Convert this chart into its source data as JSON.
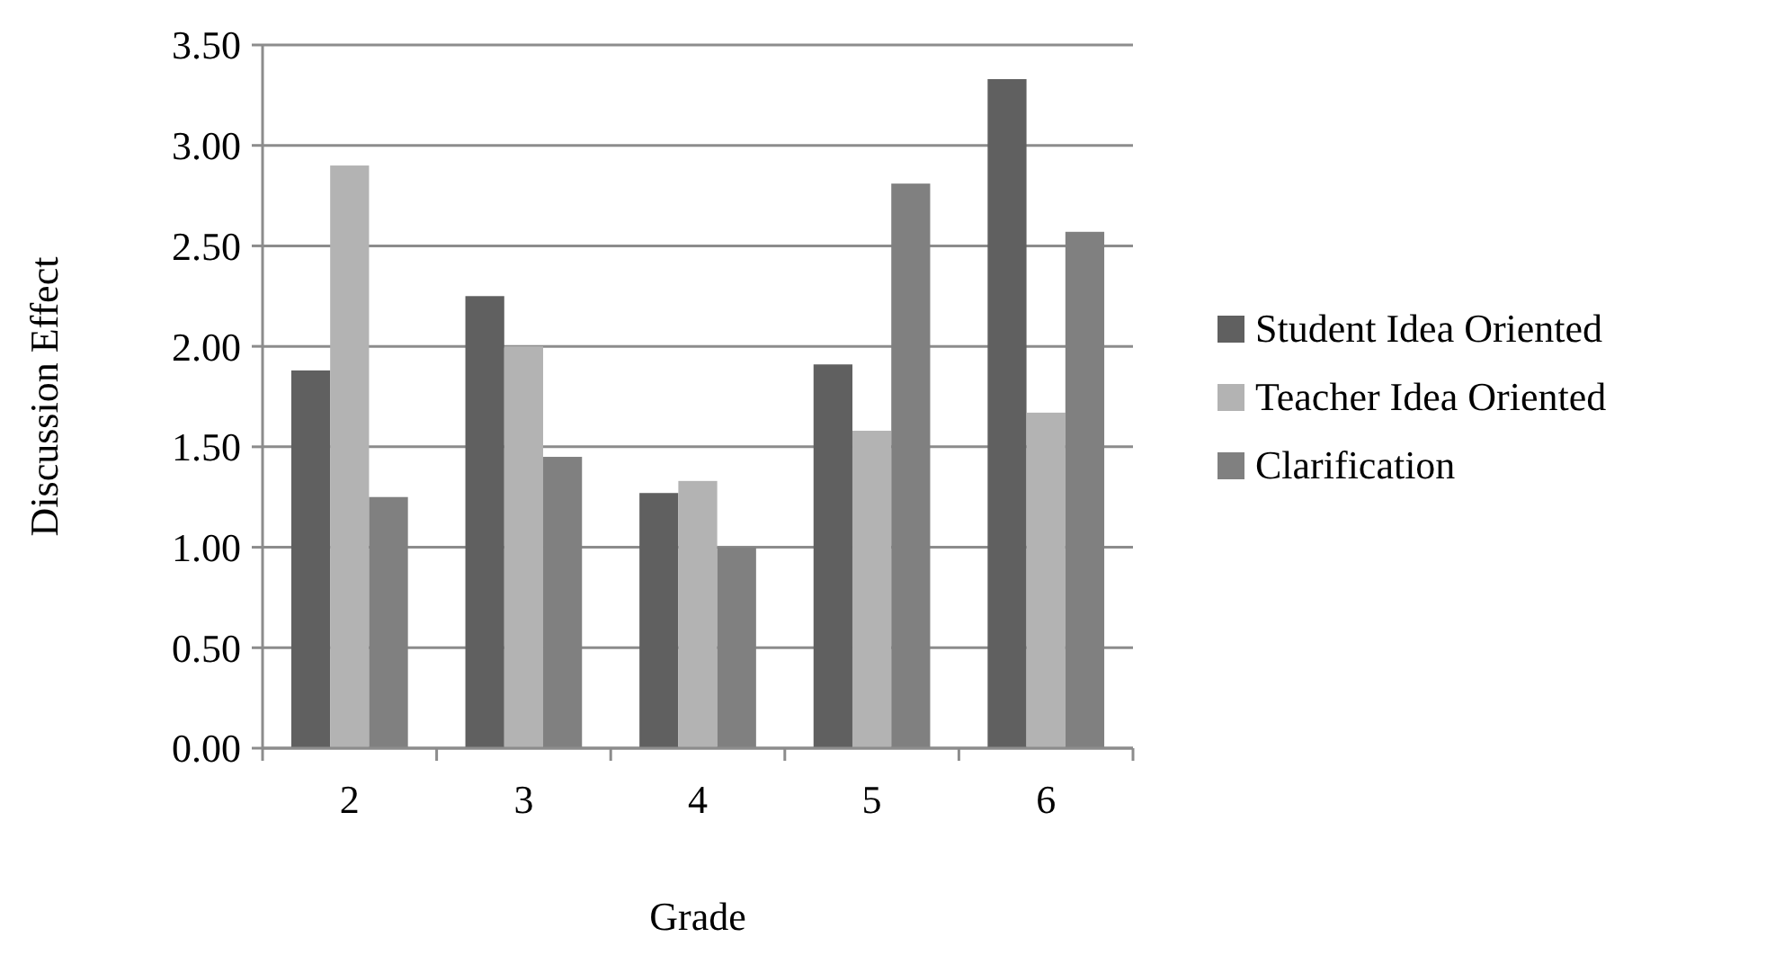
{
  "chart_data": {
    "type": "bar",
    "xlabel": "Grade",
    "ylabel": "Discussion Effect",
    "categories": [
      "2",
      "3",
      "4",
      "5",
      "6"
    ],
    "series": [
      {
        "name": "Student Idea Oriented",
        "color": "#606060",
        "values": [
          1.88,
          2.25,
          1.27,
          1.91,
          3.33
        ]
      },
      {
        "name": "Teacher Idea Oriented",
        "color": "#b3b3b3",
        "values": [
          2.9,
          2.0,
          1.33,
          1.58,
          1.67
        ]
      },
      {
        "name": "Clarification",
        "color": "#808080",
        "values": [
          1.25,
          1.45,
          1.0,
          2.81,
          2.57
        ]
      }
    ],
    "ylim": [
      0,
      3.5
    ],
    "yticks": [
      {
        "value": 0,
        "label": "0.00"
      },
      {
        "value": 0.5,
        "label": "0.50"
      },
      {
        "value": 1,
        "label": "1.00"
      },
      {
        "value": 1.5,
        "label": "1.50"
      },
      {
        "value": 2,
        "label": "2.00"
      },
      {
        "value": 2.5,
        "label": "2.50"
      },
      {
        "value": 3,
        "label": "3.00"
      },
      {
        "value": 3.5,
        "label": "3.50"
      }
    ],
    "grid": "y",
    "legend": "right"
  }
}
